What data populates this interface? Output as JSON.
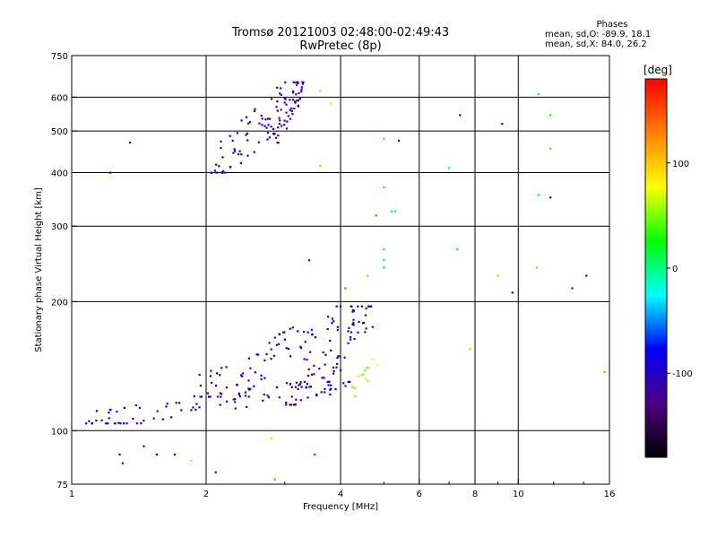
{
  "header": {
    "title_line1": "Tromsø 20121003 02:48:00-02:49:43",
    "title_line2": "RwPretec (8p)"
  },
  "phase_stats": {
    "heading": "Phases",
    "line_o": "mean, sd,O: -89.9, 18.1",
    "line_x": "mean, sd,X:  84.0, 26.2"
  },
  "colorbar": {
    "unit_label": "[deg]",
    "ticks": [
      "100",
      "0",
      "-100"
    ],
    "tick_values": [
      100,
      0,
      -100
    ],
    "range": [
      -180,
      180
    ],
    "colors": [
      "#000000",
      "#4b0082",
      "#0000ff",
      "#00ffff",
      "#00ff00",
      "#ffff00",
      "#ff8000",
      "#ff0000"
    ]
  },
  "chart_data": {
    "type": "scatter",
    "title": "Tromsø 20121003 02:48:00-02:49:43",
    "subtitle": "RwPretec (8p)",
    "xlabel": "Frequency [MHz]",
    "ylabel": "Stationary phase Virtual Height [km]",
    "x_scale": "log",
    "y_scale": "log",
    "xlim": [
      1,
      16
    ],
    "ylim": [
      75,
      750
    ],
    "x_ticks": [
      "1",
      "2",
      "4",
      "6",
      "8",
      "10",
      "16"
    ],
    "x_tick_values": [
      1,
      2,
      4,
      6,
      8,
      10,
      16
    ],
    "y_ticks": [
      "750",
      "600",
      "500",
      "400",
      "300",
      "200",
      "100",
      "75"
    ],
    "y_tick_values": [
      750,
      600,
      500,
      400,
      300,
      200,
      100,
      75
    ],
    "x_grid": [
      2,
      4,
      6,
      8,
      10
    ],
    "y_grid": [
      600,
      500,
      400,
      300,
      200,
      100
    ],
    "grid": true,
    "color_encodes": "phase [deg]",
    "traces": [
      {
        "id": "f2-o",
        "phase": -95,
        "f0": 2.05,
        "f1": 3.3,
        "h0": 400,
        "h1": 650,
        "n": 80
      },
      {
        "id": "f2-o-violet",
        "phase": -120,
        "f0": 2.8,
        "f1": 3.3,
        "h0": 470,
        "h1": 650,
        "n": 40
      },
      {
        "id": "e-o-base",
        "phase": -95,
        "f0": 1.05,
        "f1": 4.3,
        "h0": 104,
        "h1": 130,
        "n": 90
      },
      {
        "id": "e-o-upper",
        "phase": -95,
        "f0": 1.9,
        "f1": 4.8,
        "h0": 120,
        "h1": 195,
        "n": 110
      },
      {
        "id": "e-o-violet",
        "phase": -125,
        "f0": 3.0,
        "f1": 4.3,
        "h0": 115,
        "h1": 160,
        "n": 40
      },
      {
        "id": "e-x-misc",
        "phase": 60,
        "f0": 4.2,
        "f1": 5.0,
        "h0": 120,
        "h1": 150,
        "n": 14
      }
    ],
    "points": [
      {
        "x": 1.35,
        "y": 470,
        "phase": -95
      },
      {
        "x": 1.22,
        "y": 400,
        "phase": -95
      },
      {
        "x": 3.6,
        "y": 620,
        "phase": 100
      },
      {
        "x": 3.8,
        "y": 580,
        "phase": 90
      },
      {
        "x": 3.6,
        "y": 415,
        "phase": 110
      },
      {
        "x": 5.0,
        "y": 480,
        "phase": 10
      },
      {
        "x": 5.4,
        "y": 475,
        "phase": -110
      },
      {
        "x": 5.0,
        "y": 370,
        "phase": 20
      },
      {
        "x": 5.2,
        "y": 325,
        "phase": 0
      },
      {
        "x": 5.3,
        "y": 325,
        "phase": 10
      },
      {
        "x": 4.8,
        "y": 318,
        "phase": 150
      },
      {
        "x": 7.0,
        "y": 410,
        "phase": 10
      },
      {
        "x": 7.4,
        "y": 545,
        "phase": -110
      },
      {
        "x": 9.2,
        "y": 520,
        "phase": -115
      },
      {
        "x": 11.1,
        "y": 610,
        "phase": 20
      },
      {
        "x": 11.8,
        "y": 545,
        "phase": 20
      },
      {
        "x": 11.8,
        "y": 455,
        "phase": 120
      },
      {
        "x": 11.1,
        "y": 355,
        "phase": 20
      },
      {
        "x": 11.8,
        "y": 350,
        "phase": -110
      },
      {
        "x": 7.3,
        "y": 265,
        "phase": 20
      },
      {
        "x": 9.0,
        "y": 230,
        "phase": 110
      },
      {
        "x": 11.0,
        "y": 240,
        "phase": 110
      },
      {
        "x": 9.7,
        "y": 210,
        "phase": -100
      },
      {
        "x": 13.2,
        "y": 215,
        "phase": -100
      },
      {
        "x": 14.2,
        "y": 230,
        "phase": -100
      },
      {
        "x": 7.8,
        "y": 155,
        "phase": 110
      },
      {
        "x": 15.6,
        "y": 137,
        "phase": 30
      },
      {
        "x": 5.0,
        "y": 265,
        "phase": 10
      },
      {
        "x": 5.0,
        "y": 250,
        "phase": 10
      },
      {
        "x": 5.0,
        "y": 240,
        "phase": 10
      },
      {
        "x": 4.6,
        "y": 230,
        "phase": 110
      },
      {
        "x": 3.4,
        "y": 250,
        "phase": -100
      },
      {
        "x": 4.1,
        "y": 215,
        "phase": 150
      },
      {
        "x": 2.8,
        "y": 96,
        "phase": 60
      },
      {
        "x": 3.5,
        "y": 88,
        "phase": 170
      },
      {
        "x": 2.85,
        "y": 77,
        "phase": 140
      },
      {
        "x": 1.85,
        "y": 85,
        "phase": 100
      },
      {
        "x": 2.1,
        "y": 80,
        "phase": -100
      },
      {
        "x": 1.55,
        "y": 88,
        "phase": -90
      },
      {
        "x": 1.45,
        "y": 92,
        "phase": -130
      },
      {
        "x": 1.3,
        "y": 84,
        "phase": -100
      },
      {
        "x": 1.28,
        "y": 88,
        "phase": -95
      },
      {
        "x": 1.7,
        "y": 88,
        "phase": -100
      }
    ]
  }
}
